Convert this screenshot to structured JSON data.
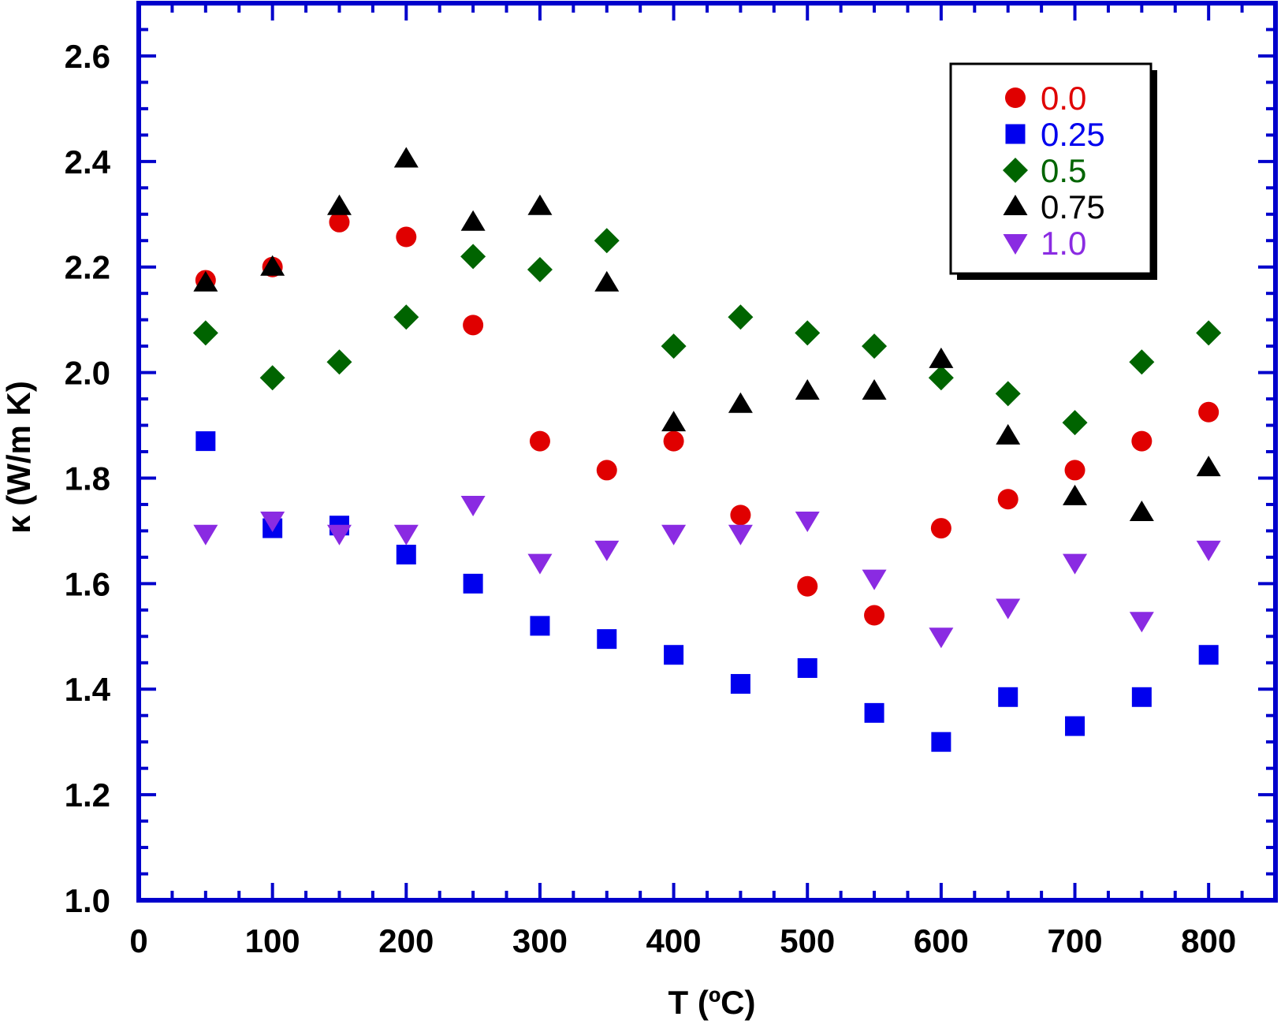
{
  "chart_data": {
    "type": "scatter",
    "xlabel": "T (ºC)",
    "ylabel": "κ (W/m K)",
    "xlim": [
      0,
      850
    ],
    "ylim": [
      1.0,
      2.7
    ],
    "x_ticks": [
      0,
      100,
      200,
      300,
      400,
      500,
      600,
      700,
      800
    ],
    "y_ticks": [
      1.0,
      1.2,
      1.4,
      1.6,
      1.8,
      2.0,
      2.2,
      2.4,
      2.6
    ],
    "x_tick_labels": [
      "0",
      "100",
      "200",
      "300",
      "400",
      "500",
      "600",
      "700",
      "800"
    ],
    "y_tick_labels": [
      "1.0",
      "1.2",
      "1.4",
      "1.6",
      "1.8",
      "2.0",
      "2.2",
      "2.4",
      "2.6"
    ],
    "axis_color": "#0000cc",
    "grid": false,
    "legend_position": "top-right",
    "x": [
      50,
      100,
      150,
      200,
      250,
      300,
      350,
      400,
      450,
      500,
      550,
      600,
      650,
      700,
      750,
      800
    ],
    "series": [
      {
        "name": "0.0",
        "marker": "circle",
        "color": "#e00000",
        "values": [
          2.175,
          2.2,
          2.285,
          2.257,
          2.09,
          1.87,
          1.815,
          1.87,
          1.73,
          1.595,
          1.54,
          1.705,
          1.76,
          1.815,
          1.87,
          1.925
        ]
      },
      {
        "name": "0.25",
        "marker": "square",
        "color": "#0000ee",
        "values": [
          1.87,
          1.705,
          1.71,
          1.655,
          1.6,
          1.52,
          1.495,
          1.465,
          1.41,
          1.44,
          1.355,
          1.3,
          1.385,
          1.33,
          1.385,
          1.465
        ]
      },
      {
        "name": "0.5",
        "marker": "diamond",
        "color": "#006400",
        "values": [
          2.075,
          1.99,
          2.02,
          2.105,
          2.22,
          2.195,
          2.25,
          2.05,
          2.105,
          2.075,
          2.05,
          1.99,
          1.96,
          1.905,
          2.02,
          2.075
        ]
      },
      {
        "name": "0.75",
        "marker": "triangle-up",
        "color": "#000000",
        "values": [
          2.17,
          2.2,
          2.315,
          2.405,
          2.285,
          2.315,
          2.17,
          1.905,
          1.94,
          1.965,
          1.965,
          2.025,
          1.88,
          1.765,
          1.735,
          1.82
        ]
      },
      {
        "name": "1.0",
        "marker": "triangle-down",
        "color": "#8a2be2",
        "values": [
          1.695,
          1.72,
          1.695,
          1.695,
          1.75,
          1.64,
          1.665,
          1.695,
          1.695,
          1.72,
          1.61,
          1.5,
          1.555,
          1.64,
          1.53,
          1.665
        ]
      }
    ]
  }
}
